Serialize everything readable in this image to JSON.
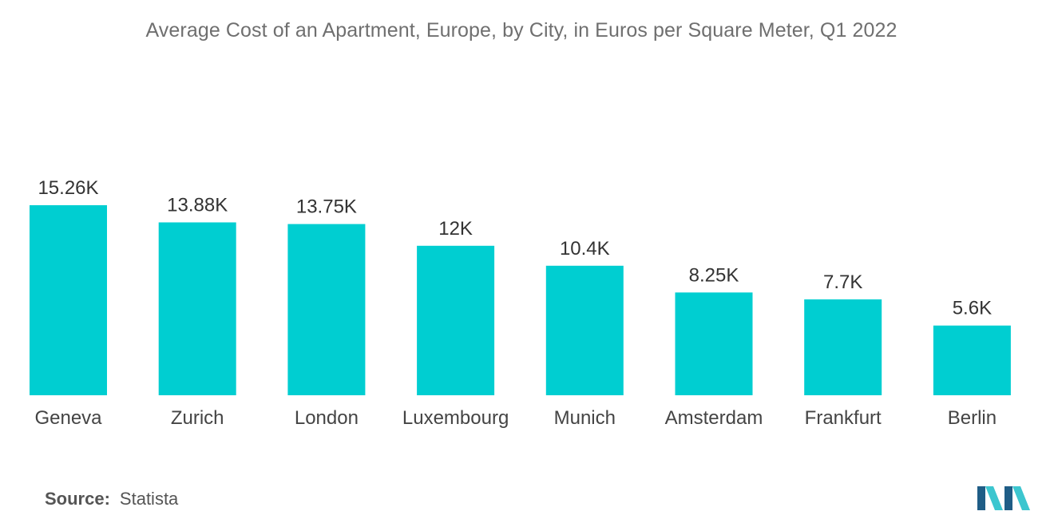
{
  "title": "Average Cost of an Apartment, Europe, by City, in Euros per Square Meter, Q1 2022",
  "source": {
    "label": "Source:",
    "value": "Statista"
  },
  "colors": {
    "bar": "#00CED1",
    "logo_dark": "#1f5d86",
    "logo_light": "#3cc6cf"
  },
  "chart_data": {
    "type": "bar",
    "title": "Average Cost of an Apartment, Europe, by City, in Euros per Square Meter, Q1 2022",
    "xlabel": "",
    "ylabel": "",
    "categories": [
      "Geneva",
      "Zurich",
      "London",
      "Luxembourg",
      "Munich",
      "Amsterdam",
      "Frankfurt",
      "Berlin"
    ],
    "values": [
      15260,
      13880,
      13750,
      12000,
      10400,
      8250,
      7700,
      5600
    ],
    "value_labels": [
      "15.26K",
      "13.88K",
      "13.75K",
      "12K",
      "10.4K",
      "8.25K",
      "7.7K",
      "5.6K"
    ],
    "ylim": [
      0,
      15260
    ],
    "grid": false,
    "legend": "none"
  }
}
